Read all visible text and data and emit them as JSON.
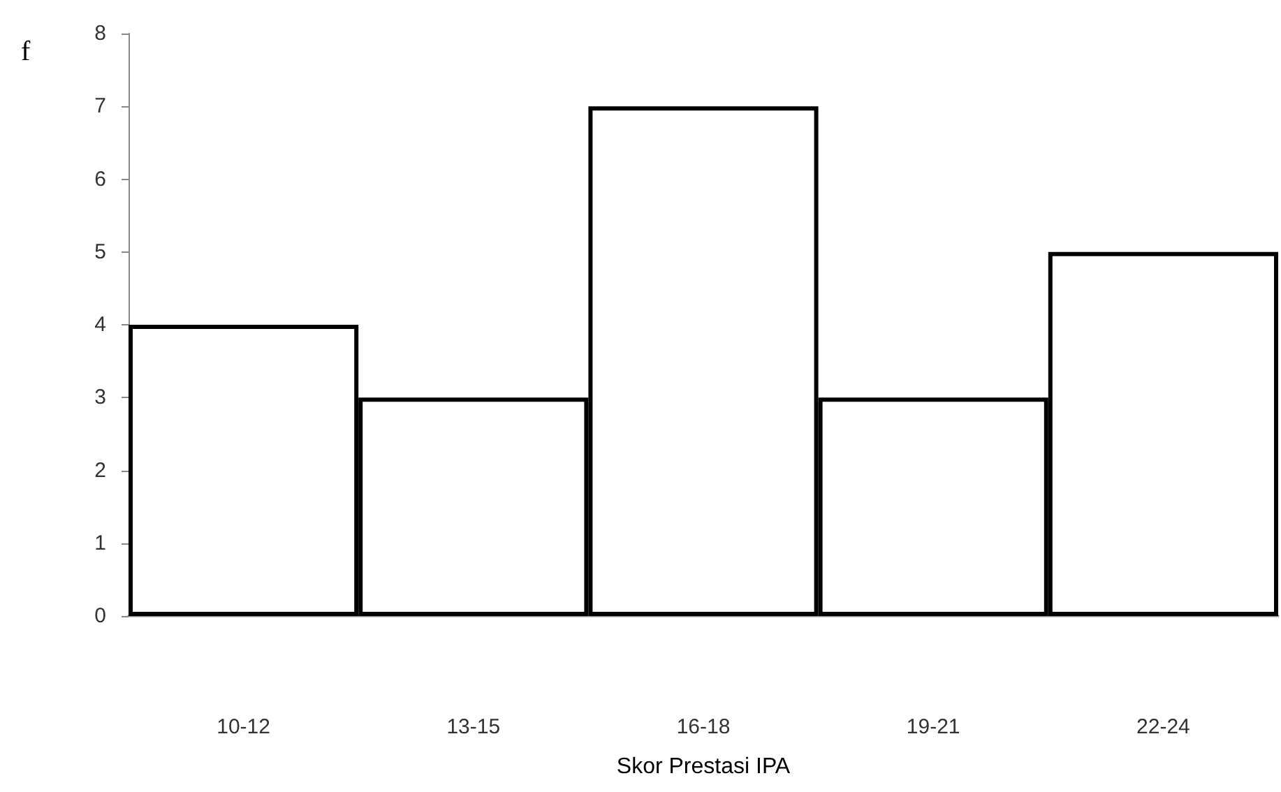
{
  "chart_data": {
    "type": "bar",
    "xlabel": "Skor Prestasi IPA",
    "ylabel": "f",
    "categories": [
      "10-12",
      "13-15",
      "16-18",
      "19-21",
      "22-24"
    ],
    "values": [
      4,
      3,
      7,
      3,
      5
    ],
    "color": "#ffffff",
    "ylim": [
      0,
      8
    ],
    "yticks": [
      0,
      1,
      2,
      3,
      4,
      5,
      6,
      7,
      8
    ],
    "grid": false
  }
}
